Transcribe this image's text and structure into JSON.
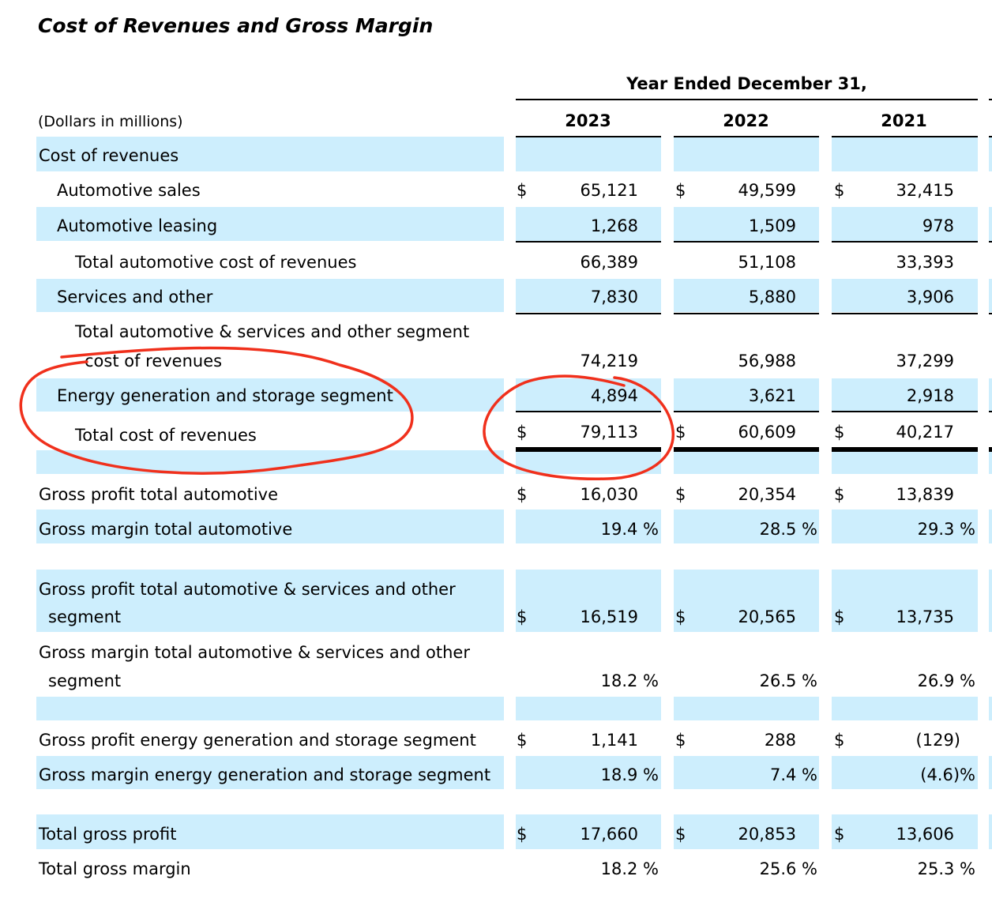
{
  "title": "Cost of Revenues and Gross Margin",
  "header": {
    "period": "Year Ended December 31,",
    "units": "(Dollars in millions)",
    "years": [
      "2023",
      "2022",
      "2021"
    ]
  },
  "rows": [
    {
      "label": "Cost of revenues"
    },
    {
      "label": "Automotive sales",
      "dollar": "$",
      "v": [
        "65,121",
        "49,599",
        "32,415"
      ]
    },
    {
      "label": "Automotive leasing",
      "v": [
        "1,268",
        "1,509",
        "978"
      ]
    },
    {
      "label": "Total automotive cost of revenues",
      "v": [
        "66,389",
        "51,108",
        "33,393"
      ]
    },
    {
      "label": "Services and other",
      "v": [
        "7,830",
        "5,880",
        "3,906"
      ]
    },
    {
      "label": "Total automotive & services and other segment",
      "label2": "cost of revenues",
      "v": [
        "74,219",
        "56,988",
        "37,299"
      ]
    },
    {
      "label": "Energy generation and storage segment",
      "v": [
        "4,894",
        "3,621",
        "2,918"
      ]
    },
    {
      "label": "Total cost of revenues",
      "dollar": "$",
      "v": [
        "79,113",
        "60,609",
        "40,217"
      ]
    },
    {
      "label": "Gross profit total automotive",
      "dollar": "$",
      "v": [
        "16,030",
        "20,354",
        "13,839"
      ]
    },
    {
      "label": "Gross margin total automotive",
      "v": [
        "19.4 %",
        "28.5 %",
        "29.3 %"
      ]
    },
    {
      "label": "Gross profit total automotive & services and other",
      "label2": "segment",
      "dollar": "$",
      "v": [
        "16,519",
        "20,565",
        "13,735"
      ]
    },
    {
      "label": "Gross margin total automotive & services and other",
      "label2": "segment",
      "v": [
        "18.2 %",
        "26.5 %",
        "26.9 %"
      ]
    },
    {
      "label": "Gross profit energy generation and storage segment",
      "dollar": "$",
      "v": [
        "1,141",
        "288",
        "(129)"
      ]
    },
    {
      "label": "Gross margin energy generation and storage segment",
      "v": [
        "18.9 %",
        "7.4 %",
        "(4.6)%"
      ]
    },
    {
      "label": "Total gross profit",
      "dollar": "$",
      "v": [
        "17,660",
        "20,853",
        "13,606"
      ]
    },
    {
      "label": "Total gross margin",
      "v": [
        "18.2 %",
        "25.6 %",
        "25.3 %"
      ]
    }
  ],
  "colors": {
    "band": "#cdeefd",
    "annotation": "#f0301c"
  }
}
